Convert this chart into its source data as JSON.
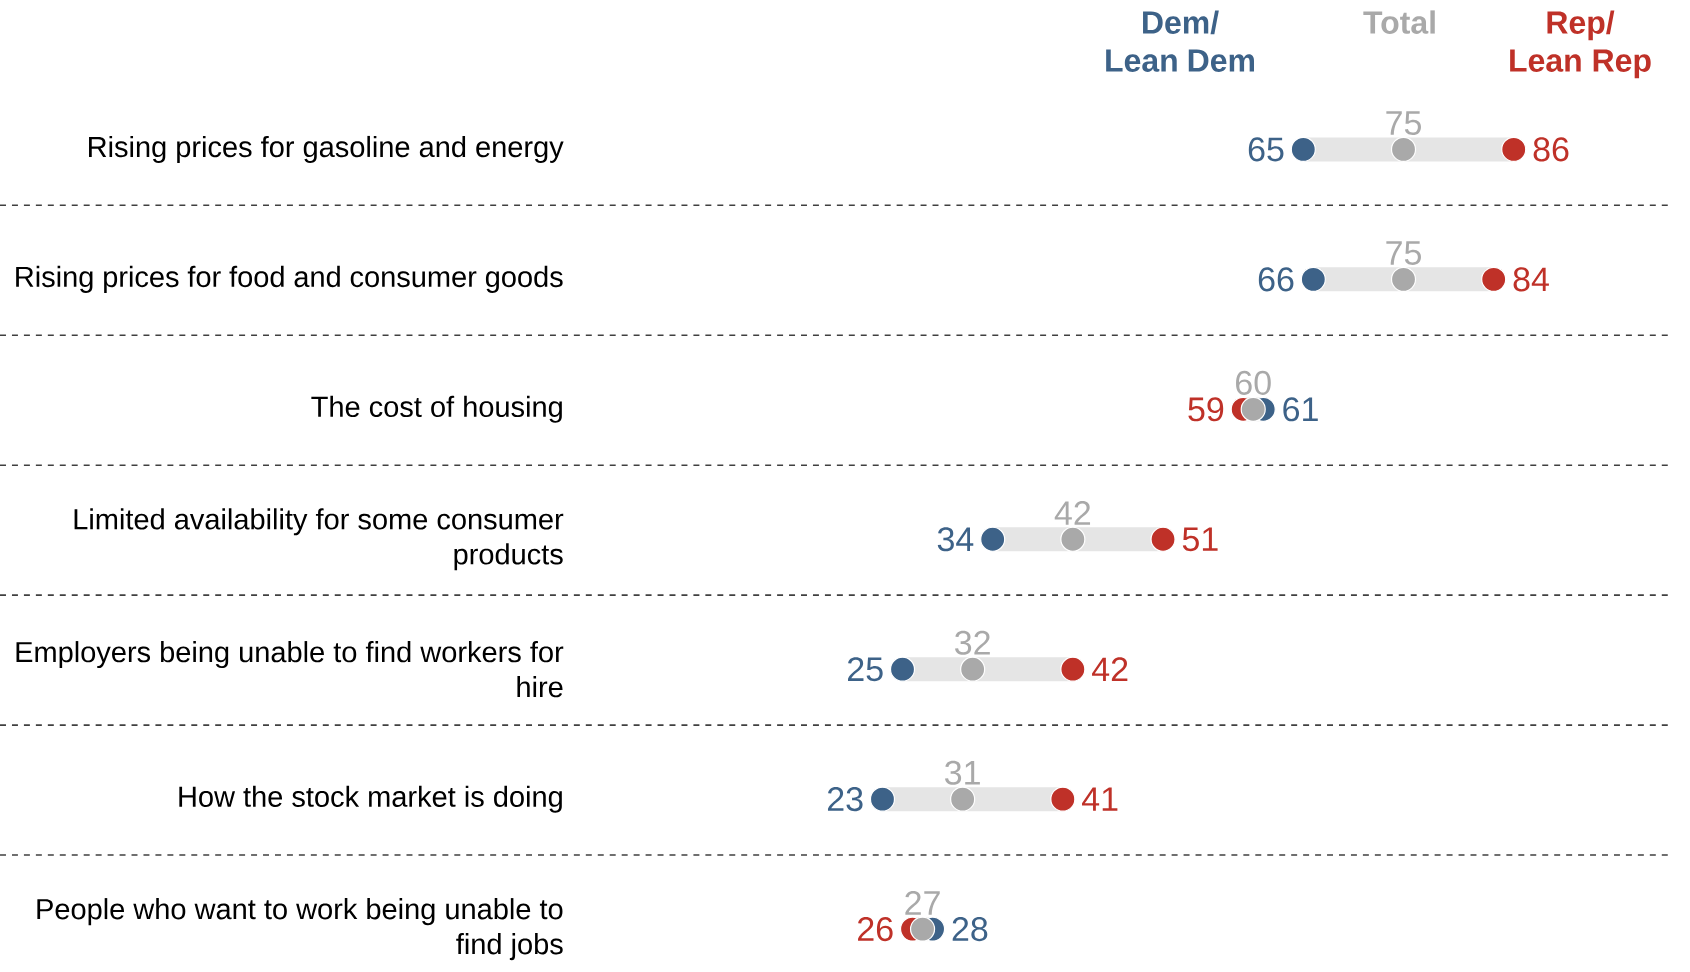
{
  "chart_data": {
    "type": "scatter",
    "orientation": "horizontal",
    "categories": [
      "Rising prices for gasoline and energy",
      "Rising prices for food and consumer goods",
      "The cost of housing",
      "Limited availability for some consumer products",
      "Employers being unable to find workers for hire",
      "How the stock market is doing",
      "People who want to work being unable to find jobs"
    ],
    "series": [
      {
        "name": "Dem/ Lean Dem",
        "color": "#3d6288",
        "values": [
          65,
          66,
          61,
          34,
          25,
          23,
          28
        ]
      },
      {
        "name": "Total",
        "color": "#a9a9a9",
        "values": [
          75,
          75,
          60,
          42,
          32,
          31,
          27
        ]
      },
      {
        "name": "Rep/ Lean Rep",
        "color": "#bf3128",
        "values": [
          86,
          84,
          59,
          51,
          42,
          41,
          26
        ]
      }
    ],
    "tick_labels": "y",
    "data_labels": true,
    "marker": "circle"
  }
}
